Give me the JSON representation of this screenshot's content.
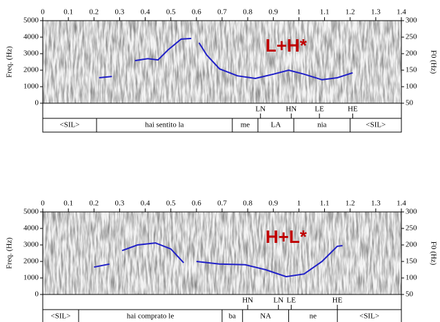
{
  "chart_data": [
    {
      "type": "line",
      "xlim": [
        0,
        1.4
      ],
      "xticks": [
        0,
        0.1,
        0.2,
        0.3,
        0.4,
        0.5,
        0.6,
        0.7,
        0.8,
        0.9,
        1,
        1.1,
        1.2,
        1.3,
        1.4
      ],
      "ylabel": "Freq. (Hz)",
      "ylim": [
        0,
        5000
      ],
      "yticks": [
        0,
        1000,
        2000,
        3000,
        4000,
        5000
      ],
      "y2label": "F0 (Hz)",
      "y2lim": [
        50,
        300
      ],
      "y2ticks": [
        50,
        100,
        150,
        200,
        250,
        300
      ],
      "x": [
        0.22,
        0.27,
        null,
        0.36,
        0.41,
        0.45,
        0.49,
        0.54,
        0.58,
        null,
        0.61,
        0.64,
        0.69,
        0.76,
        0.83,
        0.9,
        0.96,
        1.02,
        1.09,
        1.15,
        1.21
      ],
      "series": [
        {
          "color": "#1f1fc8",
          "axis": "y2",
          "values": [
            127,
            131,
            null,
            179,
            185,
            181,
            212,
            244,
            246,
            null,
            233,
            196,
            154,
            133,
            125,
            138,
            150,
            138,
            121,
            127,
            142
          ]
        }
      ],
      "annotation": "L+H*",
      "point_tier": {
        "labels": [
          "LN",
          "HN",
          "LE",
          "HE"
        ],
        "times": [
          0.85,
          0.97,
          1.08,
          1.21
        ]
      },
      "interval_tier": {
        "labels": [
          "<SIL>",
          "hai sentito la",
          "me",
          "LA",
          "nia",
          "<SIL>"
        ],
        "boundaries": [
          0.21,
          0.74,
          0.84,
          0.98,
          1.2
        ]
      }
    },
    {
      "type": "line",
      "xlim": [
        0,
        1.4
      ],
      "xticks": [
        0,
        0.1,
        0.2,
        0.3,
        0.4,
        0.5,
        0.6,
        0.7,
        0.8,
        0.9,
        1,
        1.1,
        1.2,
        1.3,
        1.4
      ],
      "ylabel": "Freq. (Hz)",
      "ylim": [
        0,
        5000
      ],
      "yticks": [
        0,
        1000,
        2000,
        3000,
        4000,
        5000
      ],
      "y2label": "F0 (Hz)",
      "y2lim": [
        50,
        300
      ],
      "y2ticks": [
        50,
        100,
        150,
        200,
        250,
        300
      ],
      "x": [
        0.2,
        0.26,
        null,
        0.31,
        0.37,
        0.44,
        0.5,
        0.55,
        null,
        0.6,
        0.69,
        0.79,
        0.87,
        0.95,
        1.02,
        1.09,
        1.15,
        1.17
      ],
      "series": [
        {
          "color": "#1f1fc8",
          "axis": "y2",
          "values": [
            133,
            142,
            null,
            183,
            200,
            206,
            188,
            146,
            null,
            150,
            142,
            140,
            125,
            104,
            112,
            150,
            196,
            198
          ]
        }
      ],
      "annotation": "H+L*",
      "point_tier": {
        "labels": [
          "HN",
          "LN",
          "LE",
          "HE"
        ],
        "times": [
          0.8,
          0.92,
          0.97,
          1.15
        ]
      },
      "interval_tier": {
        "labels": [
          "<SIL>",
          "hai comprato le",
          "ba",
          "NA",
          "ne",
          "<SIL>"
        ],
        "boundaries": [
          0.14,
          0.7,
          0.78,
          0.96,
          1.15
        ]
      }
    }
  ]
}
